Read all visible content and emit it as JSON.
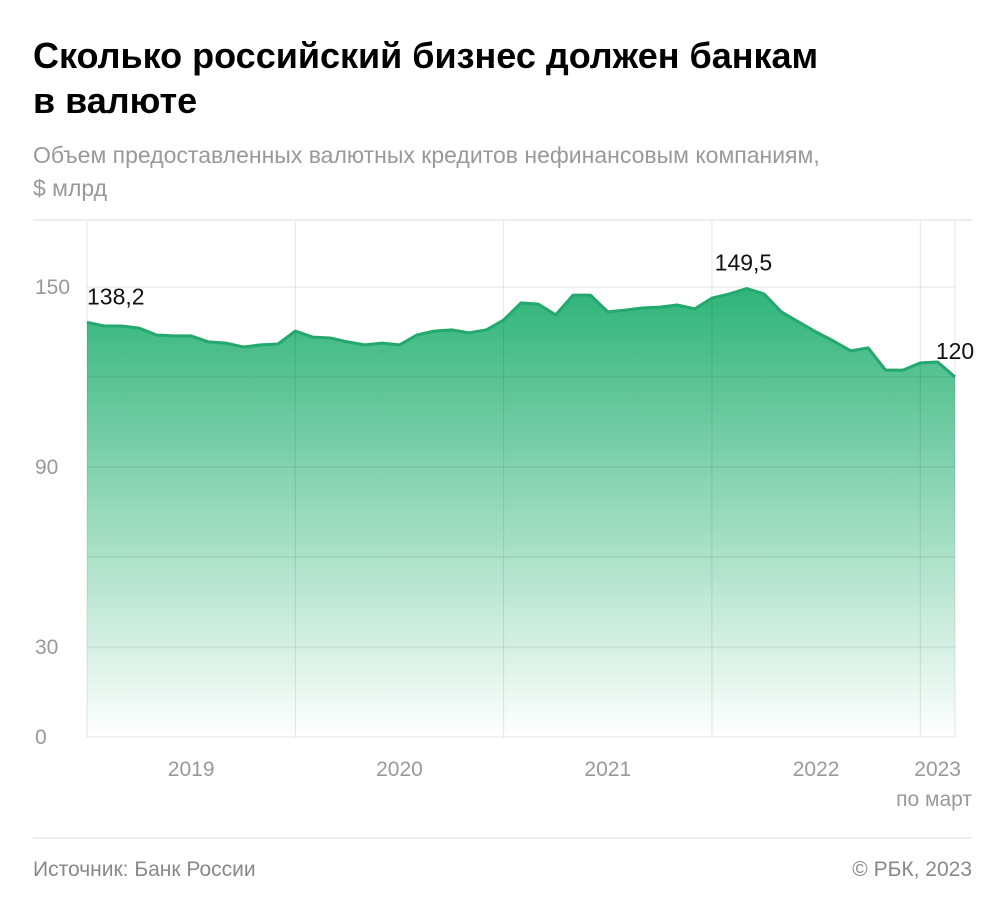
{
  "chart_data": {
    "type": "area",
    "title_lines": [
      "Сколько российский бизнес должен банкам",
      "в валюте"
    ],
    "subtitle_lines": [
      "Объем предоставленных валютных кредитов нефинансовым компаниям,",
      "$ млрд"
    ],
    "source": "Источник: Банк России",
    "credit": "© РБК, 2023",
    "x_note": "по март",
    "color": "#23a86e",
    "x": [
      2019,
      2019.0833,
      2019.1667,
      2019.25,
      2019.3333,
      2019.4167,
      2019.5,
      2019.5833,
      2019.6667,
      2019.75,
      2019.8333,
      2019.9167,
      2020,
      2020.0833,
      2020.1667,
      2020.25,
      2020.3333,
      2020.4167,
      2020.5,
      2020.5833,
      2020.6667,
      2020.75,
      2020.8333,
      2020.9167,
      2021,
      2021.0833,
      2021.1667,
      2021.25,
      2021.3333,
      2021.4167,
      2021.5,
      2021.5833,
      2021.6667,
      2021.75,
      2021.8333,
      2021.9167,
      2022,
      2022.0833,
      2022.1667,
      2022.25,
      2022.3333,
      2022.4167,
      2022.5,
      2022.5833,
      2022.6667,
      2022.75,
      2022.8333,
      2022.9167,
      2023,
      2023.0833,
      2023.1667
    ],
    "values": [
      138.2,
      137,
      137,
      136.3,
      134,
      133.7,
      133.7,
      131.7,
      131.3,
      130,
      130.7,
      131,
      135.3,
      133.3,
      133,
      131.7,
      130.7,
      131.3,
      130.7,
      134,
      135.3,
      135.7,
      134.7,
      135.7,
      139,
      144.7,
      144.3,
      140.7,
      147.3,
      147.3,
      141.7,
      142.3,
      143,
      143.3,
      144,
      142.7,
      146.3,
      147.7,
      149.5,
      147.7,
      141.7,
      138.3,
      135,
      132,
      128.7,
      129.7,
      122.3,
      122.3,
      124.7,
      125,
      120
    ],
    "value_labels": [
      "138,2",
      null,
      null,
      null,
      null,
      null,
      null,
      null,
      null,
      null,
      null,
      null,
      null,
      null,
      null,
      null,
      null,
      null,
      null,
      null,
      null,
      null,
      null,
      null,
      null,
      null,
      null,
      null,
      null,
      null,
      null,
      null,
      null,
      null,
      null,
      null,
      null,
      null,
      "149,5",
      null,
      null,
      null,
      null,
      null,
      null,
      null,
      null,
      null,
      null,
      null,
      "120"
    ],
    "xlim": [
      2019,
      2023.1667
    ],
    "xticks": [
      {
        "value": 2019.5,
        "label": "2019"
      },
      {
        "value": 2020.5,
        "label": "2020"
      },
      {
        "value": 2021.5,
        "label": "2021"
      },
      {
        "value": 2022.5,
        "label": "2022"
      },
      {
        "value": 2023.0833,
        "label": "2023"
      }
    ],
    "xgrid": [
      2019,
      2020,
      2021,
      2022,
      2023,
      2023.1667
    ],
    "ylim": [
      0,
      172
    ],
    "yticks": [
      0,
      30,
      90,
      150
    ],
    "ygrid": [
      0,
      30,
      60,
      90,
      120,
      150
    ]
  }
}
